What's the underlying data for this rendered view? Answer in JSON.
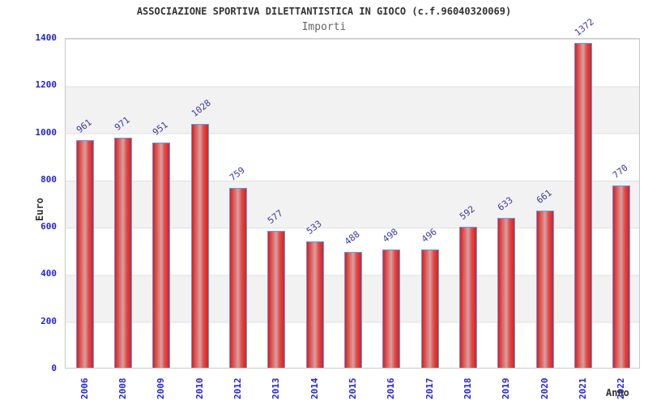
{
  "chart_data": {
    "type": "bar",
    "title": "ASSOCIAZIONE SPORTIVA DILETTANTISTICA IN GIOCO (c.f.96040320069)",
    "subtitle": "Importi",
    "xlabel": "Anno",
    "ylabel": "Euro",
    "categories": [
      "2006",
      "2008",
      "2009",
      "2010",
      "2012",
      "2013",
      "2014",
      "2015",
      "2016",
      "2017",
      "2018",
      "2019",
      "2020",
      "2021",
      "2022"
    ],
    "values": [
      961,
      971,
      951,
      1028,
      759,
      577,
      533,
      488,
      498,
      496,
      592,
      633,
      661,
      1372,
      770
    ],
    "ylim": [
      0,
      1400
    ],
    "yticks": [
      0,
      200,
      400,
      600,
      800,
      1000,
      1200,
      1400
    ],
    "grid": "horizontal gridlines every 200 with alternating gray/white bands",
    "legend": "none",
    "bar_label_rotation_deg": -38,
    "x_label_rotation_deg": -90
  },
  "colors": {
    "title_color": "#333333",
    "subtitle_color": "#666666",
    "axis_label": "#2424d6",
    "value_label": "#3b3b9e",
    "bar_border": "#58a0e8",
    "bar_red": "#dd1f1f",
    "bar_highlight": "#d4a2a2",
    "plot_border": "#c8c8c8",
    "grid_line": "#e0e0e0",
    "band_gray": "#f2f2f2",
    "background": "#ffffff"
  }
}
